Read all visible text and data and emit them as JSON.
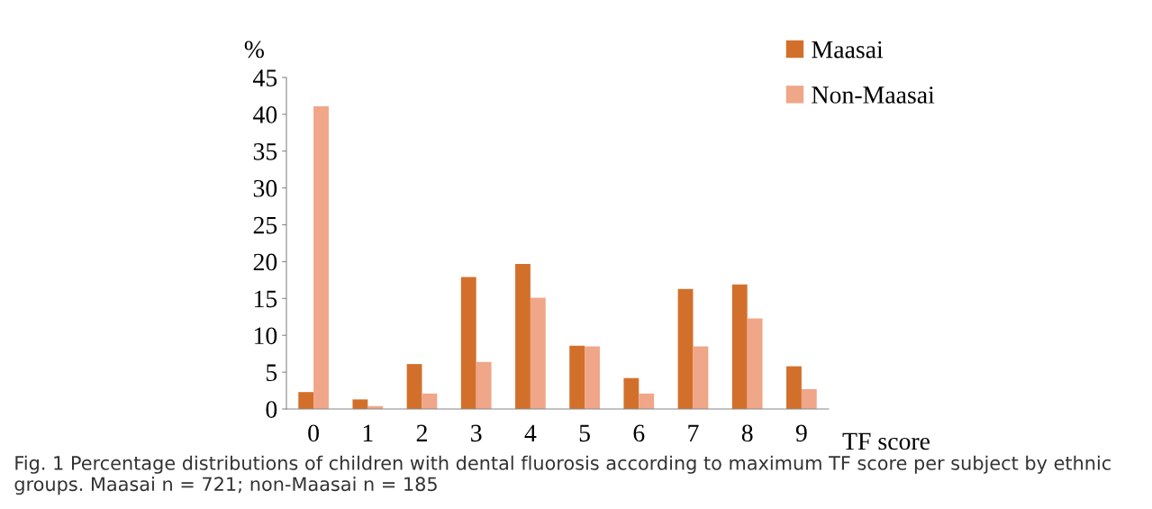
{
  "chart_data": {
    "type": "bar",
    "ylabel": "%",
    "xlabel": "TF score",
    "categories": [
      "0",
      "1",
      "2",
      "3",
      "4",
      "5",
      "6",
      "7",
      "8",
      "9"
    ],
    "series": [
      {
        "name": "Maasai",
        "color": "#d2702b",
        "values": [
          2.3,
          1.3,
          6.1,
          17.9,
          19.7,
          8.6,
          4.2,
          16.3,
          16.9,
          5.8
        ]
      },
      {
        "name": "Non-Maasai",
        "color": "#f0a688",
        "values": [
          41.1,
          0.4,
          2.1,
          6.4,
          15.1,
          8.5,
          2.1,
          8.5,
          12.3,
          2.7
        ]
      }
    ],
    "ylim": [
      0,
      45
    ],
    "yticks": [
      0,
      5,
      10,
      15,
      20,
      25,
      30,
      35,
      40,
      45
    ],
    "grid": false,
    "legend": "top right",
    "annotations": [
      "Fig. 1 Percentage distributions of children with dental fluorosis according to maximum TF score per subject by ethnic groups. Maasai n = 721; non-Maasai n = 185"
    ]
  }
}
